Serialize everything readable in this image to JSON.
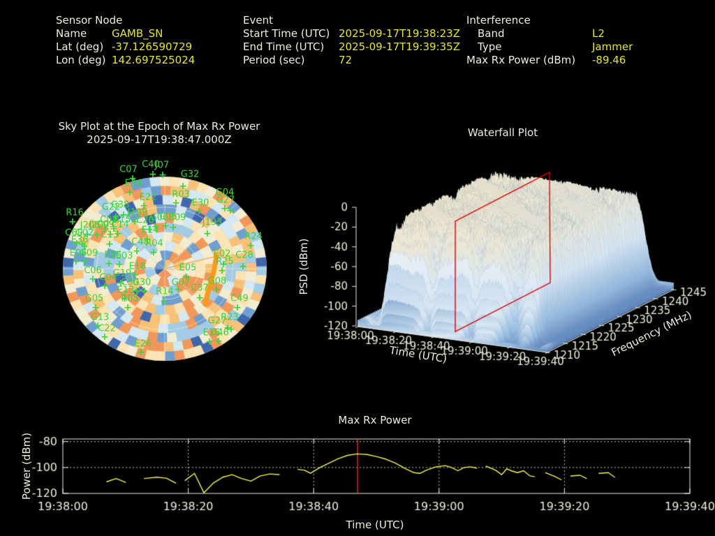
{
  "colors": {
    "background": "#000000",
    "text": "#eeeedd",
    "value_text": "#e4e43a",
    "plot_line_yellow": "#f5f55a",
    "epoch_marker_red": "#e03030",
    "satellite_green": "#3dd33d",
    "track_orange": "#f59c1a",
    "red_plane": "#dd0000"
  },
  "header": {
    "sensor": {
      "title": "Sensor Node",
      "rows": [
        {
          "label": "Name",
          "value": "GAMB_SN"
        },
        {
          "label": "Lat (deg)",
          "value": "-37.126590729"
        },
        {
          "label": "Lon (deg)",
          "value": "142.697525024"
        }
      ]
    },
    "event": {
      "title": "Event",
      "rows": [
        {
          "label": "Start Time (UTC)",
          "value": "2025-09-17T19:38:23Z"
        },
        {
          "label": "End Time (UTC)",
          "value": "2025-09-17T19:39:35Z"
        },
        {
          "label": "Period (sec)",
          "value": "72"
        }
      ]
    },
    "interference": {
      "title": "Interference",
      "rows": [
        {
          "label": "Band",
          "value": "L2"
        },
        {
          "label": "Type",
          "value": "Jammer"
        },
        {
          "label": "Max Rx Power (dBm)",
          "value": "-89.46"
        }
      ]
    }
  },
  "chart_data": [
    {
      "id": "sky_plot",
      "type": "heatmap-polar",
      "title": "Sky Plot at the Epoch of Max Rx Power",
      "subtitle": "2025-09-17T19:38:47.000Z",
      "elevation_rings_deg": [
        30,
        60
      ],
      "azimuth_spokes_deg": 45,
      "palette": [
        "#4066ad",
        "#6f9fd0",
        "#a3cbe5",
        "#d4e8f2",
        "#f2ecd3",
        "#fbe3b4",
        "#f8c178",
        "#f2975a"
      ],
      "palette_weights": [
        7,
        10,
        12,
        12,
        16,
        15,
        15,
        13
      ],
      "jammer_track": {
        "color": "#f59c1a",
        "leader_from": [
          236,
          385
        ],
        "points": [
          [
            310,
            367
          ],
          [
            307,
            385
          ],
          [
            302,
            405
          ],
          [
            297,
            422
          ],
          [
            294,
            436
          ]
        ]
      },
      "satellites": [
        [
          "C07",
          184,
          243,
          190,
          256
        ],
        [
          "C40",
          216,
          236,
          219,
          250
        ],
        [
          "J07",
          232,
          237,
          233,
          251
        ],
        [
          "G32",
          272,
          250,
          262,
          267
        ],
        [
          "E34",
          191,
          263,
          186,
          276
        ],
        [
          "E22",
          212,
          283,
          206,
          295
        ],
        [
          "R03",
          259,
          279,
          252,
          291
        ],
        [
          "G04",
          322,
          276,
          322,
          299
        ],
        [
          "G27",
          323,
          287,
          330,
          302
        ],
        [
          "E30",
          287,
          291,
          285,
          303
        ],
        [
          "R16",
          107,
          305,
          104,
          318
        ],
        [
          "G22",
          159,
          297,
          166,
          311
        ],
        [
          "G38",
          172,
          294,
          177,
          308
        ],
        [
          "J199",
          197,
          305,
          193,
          318
        ],
        [
          "C08",
          156,
          315,
          151,
          328
        ],
        [
          "E15",
          175,
          315,
          163,
          328
        ],
        [
          "C09",
          151,
          322,
          158,
          336
        ],
        [
          "C14",
          172,
          322,
          169,
          335
        ],
        [
          "C13",
          157,
          337,
          157,
          350
        ],
        [
          "J200",
          129,
          323,
          125,
          336
        ],
        [
          "J209",
          142,
          323,
          139,
          337
        ],
        [
          "C60",
          106,
          334,
          110,
          349
        ],
        [
          "G02",
          121,
          334,
          118,
          350
        ],
        [
          "E36",
          114,
          344,
          121,
          353
        ],
        [
          "E06",
          112,
          363,
          109,
          375
        ],
        [
          "G09",
          127,
          363,
          121,
          375
        ],
        [
          "G06",
          228,
          312,
          223,
          325
        ],
        [
          "C20",
          208,
          316,
          214,
          329
        ],
        [
          "C05",
          241,
          311,
          237,
          324
        ],
        [
          "E09",
          254,
          312,
          248,
          326
        ],
        [
          "J193",
          304,
          319,
          297,
          335
        ],
        [
          "R24",
          363,
          339,
          359,
          352
        ],
        [
          "E14",
          215,
          330,
          211,
          343
        ],
        [
          "C48",
          201,
          347,
          196,
          360
        ],
        [
          "R04",
          221,
          349,
          220,
          362
        ],
        [
          "R15",
          162,
          366,
          156,
          378
        ],
        [
          "E03",
          178,
          367,
          171,
          379
        ],
        [
          "E18",
          197,
          382,
          193,
          394
        ],
        [
          "E02",
          318,
          364,
          320,
          379
        ],
        [
          "C28",
          350,
          366,
          348,
          382
        ],
        [
          "R25",
          322,
          375,
          318,
          388
        ],
        [
          "G08",
          311,
          403,
          310,
          415
        ],
        [
          "C37",
          286,
          413,
          286,
          427
        ],
        [
          "E05",
          269,
          384,
          267,
          397
        ],
        [
          "G07",
          259,
          405,
          255,
          415
        ],
        [
          "R14",
          236,
          418,
          235,
          432
        ],
        [
          "G30",
          203,
          405,
          207,
          417
        ],
        [
          "C50",
          186,
          405,
          196,
          417
        ],
        [
          "G19",
          175,
          392,
          173,
          406
        ],
        [
          "C04",
          155,
          398,
          150,
          410
        ],
        [
          "C06",
          133,
          388,
          133,
          400
        ],
        [
          "E13",
          180,
          416,
          178,
          428
        ],
        [
          "R05",
          186,
          428,
          183,
          441
        ],
        [
          "G05",
          135,
          428,
          137,
          441
        ],
        [
          "G13",
          143,
          455,
          140,
          467
        ],
        [
          "C22",
          153,
          471,
          150,
          483
        ],
        [
          "E26",
          205,
          493,
          202,
          505
        ],
        [
          "C49",
          343,
          428,
          340,
          441
        ],
        [
          "G27",
          311,
          460,
          326,
          470
        ],
        [
          "R23",
          329,
          455,
          331,
          472
        ],
        [
          "C46",
          315,
          477,
          313,
          489
        ],
        [
          "E16",
          303,
          477,
          300,
          490
        ]
      ]
    },
    {
      "id": "waterfall",
      "type": "surface3d",
      "title": "Waterfall Plot",
      "zlabel": "PSD (dBm)",
      "xlabel": "Time (UTC)",
      "ylabel": "Frequency (MHz)",
      "z_ticks": [
        0,
        -20,
        -40,
        -60,
        -80,
        -100,
        -120
      ],
      "z_range_dbm": [
        -120,
        0
      ],
      "x_ticks": [
        "19:38:00",
        "19:38:20",
        "19:38:40",
        "19:39:00",
        "19:39:20",
        "19:39:40"
      ],
      "y_ticks": [
        "1210",
        "1215",
        "1220",
        "1225",
        "1230",
        "1235",
        "1240",
        "1245"
      ],
      "y_range_mhz": [
        1210,
        1245
      ],
      "highlight_plane": "red slice at epoch of max Rx power"
    },
    {
      "id": "max_rx_power",
      "type": "line",
      "title": "Max Rx Power",
      "xlabel": "Time (UTC)",
      "ylabel": "Power (dBm)",
      "x_ticks": [
        "19:38:00",
        "19:38:20",
        "19:38:40",
        "19:39:00",
        "19:39:20",
        "19:39:40"
      ],
      "x_tick_seconds": [
        0,
        20,
        40,
        60,
        80,
        100
      ],
      "xlim_seconds": [
        0,
        100
      ],
      "y_ticks": [
        -80,
        -100,
        -120
      ],
      "ylim": [
        -120,
        -78
      ],
      "marker_time_seconds": 47,
      "points": [
        [
          7,
          -111
        ],
        [
          8.5,
          -108.5
        ],
        [
          10,
          -111.5
        ],
        null,
        [
          13,
          -108.5
        ],
        [
          15,
          -107.5
        ],
        [
          16.5,
          -108.2
        ],
        [
          18,
          -112
        ],
        null,
        [
          19.5,
          -110
        ],
        [
          21,
          -104.5
        ],
        [
          22.5,
          -119.5
        ],
        [
          24,
          -112
        ],
        [
          25.5,
          -107.5
        ],
        [
          27,
          -105.5
        ],
        [
          28.5,
          -108.5
        ],
        [
          30,
          -110.5
        ],
        [
          31.5,
          -106.5
        ],
        [
          33,
          -105
        ],
        [
          34.5,
          -105.5
        ],
        null,
        [
          37.5,
          -101.5
        ],
        [
          38.5,
          -102
        ],
        [
          39.5,
          -104.5
        ],
        [
          41,
          -100
        ],
        [
          42.5,
          -96.5
        ],
        [
          44,
          -93
        ],
        [
          45.5,
          -90.5
        ],
        [
          47,
          -89.5
        ],
        [
          48.5,
          -90
        ],
        [
          50,
          -91.5
        ],
        [
          51.5,
          -93.5
        ],
        [
          53,
          -96.5
        ],
        [
          54.5,
          -100.5
        ],
        [
          56,
          -104
        ],
        [
          57,
          -104.5
        ],
        [
          58,
          -102
        ],
        [
          59.5,
          -99.5
        ],
        [
          61,
          -98.5
        ],
        [
          62,
          -100
        ],
        [
          63,
          -102.5
        ],
        [
          64,
          -100
        ],
        [
          65,
          -99.5
        ],
        [
          66,
          -100.5
        ],
        null,
        [
          67.5,
          -99
        ],
        [
          69,
          -102
        ],
        [
          70,
          -105.5
        ],
        [
          70.8,
          -101
        ],
        [
          71.5,
          -102.5
        ],
        [
          72.5,
          -104
        ],
        [
          73.5,
          -102.5
        ],
        [
          74.5,
          -106.5
        ],
        [
          75.2,
          -107
        ],
        null,
        [
          77,
          -104
        ],
        [
          78.5,
          -107
        ],
        [
          79.5,
          -109.5
        ],
        null,
        [
          81,
          -106.5
        ],
        [
          82.5,
          -106
        ],
        [
          83.5,
          -108.5
        ],
        null,
        [
          85.5,
          -104.5
        ],
        [
          87,
          -104
        ],
        [
          88,
          -107.5
        ]
      ]
    }
  ]
}
